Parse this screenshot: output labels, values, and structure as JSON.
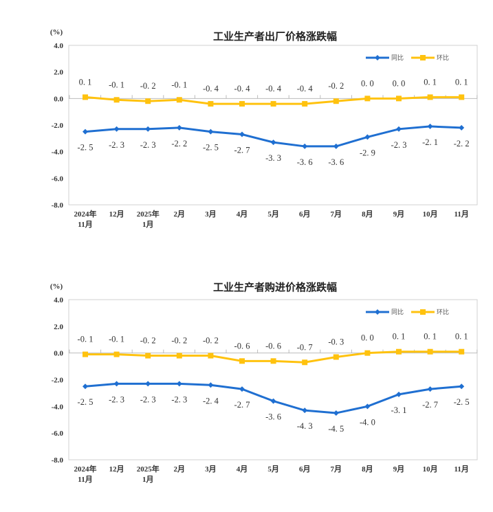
{
  "chart_data": [
    {
      "type": "line",
      "title": "工业生产者出厂价格涨跌幅",
      "ylabel": "(%)",
      "ylim": [
        -8.0,
        4.0
      ],
      "yticks": [
        "4.0",
        "2.0",
        "0.0",
        "-2.0",
        "-4.0",
        "-6.0",
        "-8.0"
      ],
      "categories": [
        "2024年\n11月",
        "12月",
        "2025年\n1月",
        "2月",
        "3月",
        "4月",
        "5月",
        "6月",
        "7月",
        "8月",
        "9月",
        "10月",
        "11月"
      ],
      "legend_position": "top-right",
      "grid": false,
      "series": [
        {
          "name": "同比",
          "color": "#1f6fd1",
          "marker": "diamond",
          "values": [
            -2.5,
            -2.3,
            -2.3,
            -2.2,
            -2.5,
            -2.7,
            -3.3,
            -3.6,
            -3.6,
            -2.9,
            -2.3,
            -2.1,
            -2.2
          ]
        },
        {
          "name": "环比",
          "color": "#ffc20e",
          "marker": "square",
          "values": [
            0.1,
            -0.1,
            -0.2,
            -0.1,
            -0.4,
            -0.4,
            -0.4,
            -0.4,
            -0.2,
            0.0,
            0.0,
            0.1,
            0.1
          ]
        }
      ]
    },
    {
      "type": "line",
      "title": "工业生产者购进价格涨跌幅",
      "ylabel": "(%)",
      "ylim": [
        -8.0,
        4.0
      ],
      "yticks": [
        "4.0",
        "2.0",
        "0.0",
        "-2.0",
        "-4.0",
        "-6.0",
        "-8.0"
      ],
      "categories": [
        "2024年\n11月",
        "12月",
        "2025年\n1月",
        "2月",
        "3月",
        "4月",
        "5月",
        "6月",
        "7月",
        "8月",
        "9月",
        "10月",
        "11月"
      ],
      "legend_position": "top-right",
      "grid": false,
      "series": [
        {
          "name": "同比",
          "color": "#1f6fd1",
          "marker": "diamond",
          "values": [
            -2.5,
            -2.3,
            -2.3,
            -2.3,
            -2.4,
            -2.7,
            -3.6,
            -4.3,
            -4.5,
            -4.0,
            -3.1,
            -2.7,
            -2.5
          ]
        },
        {
          "name": "环比",
          "color": "#ffc20e",
          "marker": "square",
          "values": [
            -0.1,
            -0.1,
            -0.2,
            -0.2,
            -0.2,
            -0.6,
            -0.6,
            -0.7,
            -0.3,
            0.0,
            0.1,
            0.1,
            0.1
          ]
        }
      ]
    }
  ]
}
